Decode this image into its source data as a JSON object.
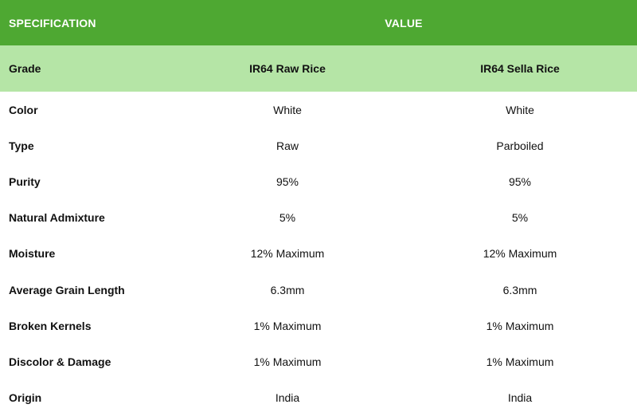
{
  "header": {
    "specification": "SPECIFICATION",
    "value": "VALUE"
  },
  "grade": {
    "label": "Grade",
    "col1": "IR64 Raw Rice",
    "col2": "IR64 Sella Rice"
  },
  "rows": [
    {
      "label": "Color",
      "col1": "White",
      "col2": "White"
    },
    {
      "label": "Type",
      "col1": "Raw",
      "col2": "Parboiled"
    },
    {
      "label": "Purity",
      "col1": "95%",
      "col2": "95%"
    },
    {
      "label": "Natural Admixture",
      "col1": "5%",
      "col2": "5%"
    },
    {
      "label": "Moisture",
      "col1": "12% Maximum",
      "col2": "12% Maximum"
    },
    {
      "label": "Average Grain Length",
      "col1": "6.3mm",
      "col2": "6.3mm"
    },
    {
      "label": "Broken Kernels",
      "col1": "1% Maximum",
      "col2": "1% Maximum"
    },
    {
      "label": "Discolor & Damage",
      "col1": "1% Maximum",
      "col2": "1% Maximum"
    },
    {
      "label": "Origin",
      "col1": "India",
      "col2": "India"
    }
  ],
  "colors": {
    "header_bg": "#4ea832",
    "grade_bg": "#b5e5a6"
  }
}
